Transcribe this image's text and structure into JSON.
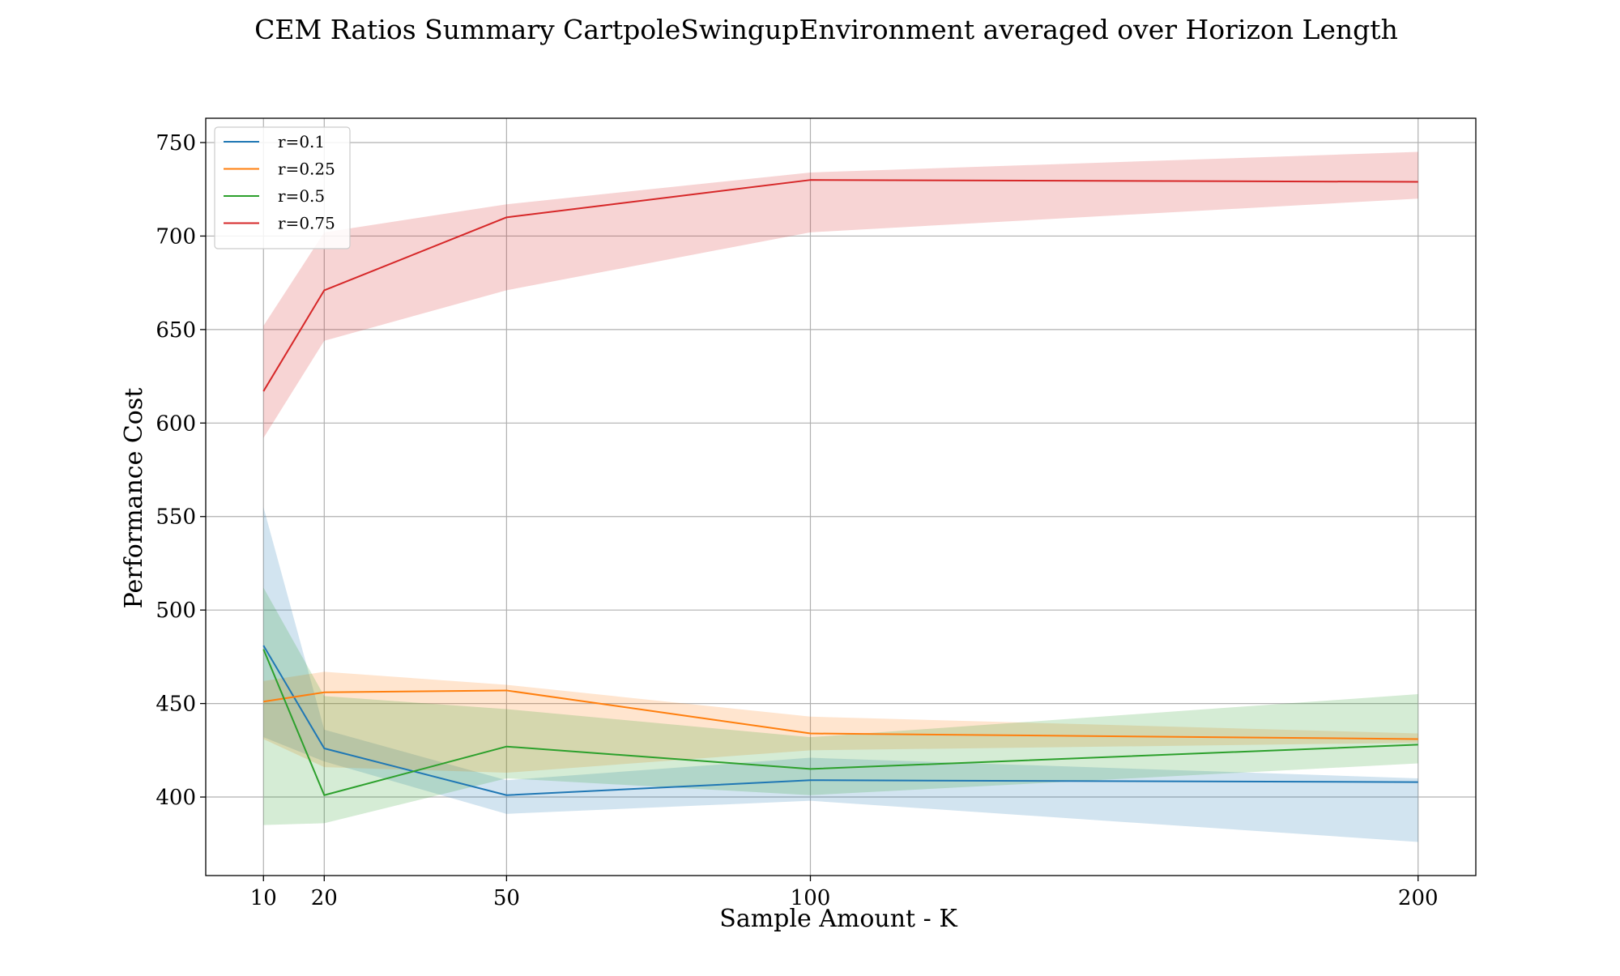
{
  "chart_data": {
    "type": "line",
    "title": "CEM Ratios Summary CartpoleSwingupEnvironment averaged over Horizon Length",
    "xlabel": "Sample Amount - K",
    "ylabel": "Performance Cost",
    "x": [
      10,
      20,
      50,
      100,
      200
    ],
    "xticks": [
      10,
      20,
      50,
      100,
      200
    ],
    "xtick_labels": [
      "10",
      "20",
      "50",
      "100",
      "200"
    ],
    "yticks": [
      400,
      450,
      500,
      550,
      600,
      650,
      700,
      750
    ],
    "ytick_labels": [
      "400",
      "450",
      "500",
      "550",
      "600",
      "650",
      "700",
      "750"
    ],
    "xlim": [
      0.5,
      209.5
    ],
    "ylim": [
      358,
      763
    ],
    "grid": true,
    "legend_position": "top-left",
    "series": [
      {
        "name": "r=0.1",
        "color": "#1f77b4",
        "values": [
          481,
          426,
          401,
          409,
          408
        ],
        "lower": [
          432,
          419,
          391,
          398,
          376
        ],
        "upper": [
          555,
          436,
          409,
          421,
          410
        ]
      },
      {
        "name": "r=0.25",
        "color": "#ff7f0e",
        "values": [
          451,
          456,
          457,
          434,
          431
        ],
        "lower": [
          431,
          416,
          413,
          425,
          429
        ],
        "upper": [
          462,
          467,
          460,
          443,
          434
        ]
      },
      {
        "name": "r=0.5",
        "color": "#2ca02c",
        "values": [
          479,
          401,
          427,
          415,
          428
        ],
        "lower": [
          385,
          386,
          410,
          401,
          418
        ],
        "upper": [
          512,
          454,
          447,
          432,
          455
        ]
      },
      {
        "name": "r=0.75",
        "color": "#d62728",
        "values": [
          617,
          671,
          710,
          730,
          729
        ],
        "lower": [
          592,
          644,
          671,
          702,
          720
        ],
        "upper": [
          652,
          702,
          717,
          734,
          745
        ]
      }
    ]
  }
}
